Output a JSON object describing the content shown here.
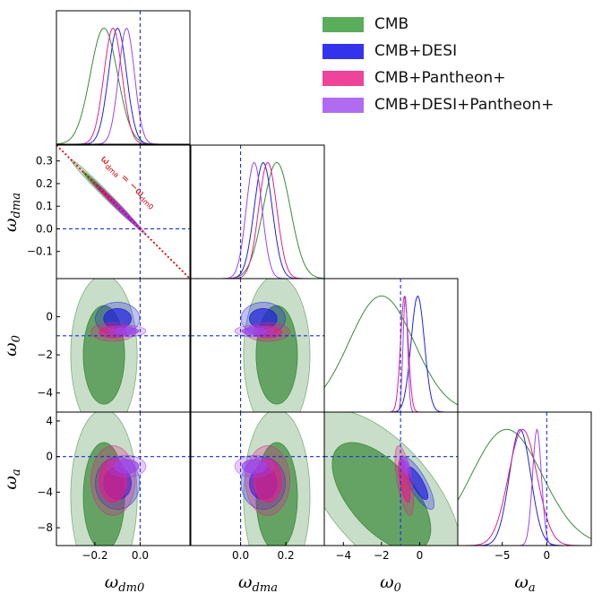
{
  "legend": [
    {
      "label": "CMB",
      "color": "#5aad5a"
    },
    {
      "label": "CMB+DESI",
      "color": "#3333ee"
    },
    {
      "label": "CMB+Pantheon+",
      "color": "#ee4499"
    },
    {
      "label": "CMB+DESI+Pantheon+",
      "color": "#b06cf0"
    }
  ],
  "chart_data": {
    "type": "triangle",
    "parameters": [
      "ω_dm0",
      "ω_dma",
      "ω_0",
      "ω_a"
    ],
    "axis_labels": {
      "dm0": "ωdm0",
      "dma": "ωdma",
      "w0": "ω0",
      "wa": "ωa"
    },
    "ranges": {
      "dm0": [
        -0.37,
        0.22
      ],
      "dma": [
        -0.22,
        0.37
      ],
      "w0": [
        -5.0,
        2.0
      ],
      "wa": [
        -10.0,
        5.0
      ]
    },
    "ticks": {
      "dm0": [
        -0.2,
        0.0
      ],
      "dma_x": [
        0.0,
        0.2
      ],
      "dma_y": [
        -0.1,
        0.0,
        0.1,
        0.2,
        0.3
      ],
      "w0_x": [
        -4,
        -2,
        0
      ],
      "w0_y": [
        -4,
        -2,
        0
      ],
      "wa_x": [
        -5,
        0
      ],
      "wa_y": [
        -8,
        -4,
        0,
        4
      ]
    },
    "reference_lines": {
      "dm0": 0.0,
      "dma": 0.0,
      "w0": -1.0,
      "wa": 0.0,
      "line_color": "#1a2fe0"
    },
    "relation_annotation": {
      "text_main": "ω",
      "sub1": "dma",
      "mid": " = −ω",
      "sub2": "dm0",
      "color": "#dd0000"
    },
    "series": [
      {
        "name": "CMB",
        "color": "#3a8a3a",
        "mean": {
          "dm0": -0.16,
          "dma": 0.16,
          "w0": -2.0,
          "wa": -4.5
        },
        "sd": {
          "dm0": 0.06,
          "dma": 0.06,
          "w0": 1.7,
          "wa": 4.0
        }
      },
      {
        "name": "CMB+DESI",
        "color": "#2222dd",
        "mean": {
          "dm0": -0.1,
          "dma": 0.1,
          "w0": -0.1,
          "wa": -3.0
        },
        "sd": {
          "dm0": 0.04,
          "dma": 0.04,
          "w0": 0.35,
          "wa": 1.2
        }
      },
      {
        "name": "CMB+Pantheon+",
        "color": "#dd2288",
        "mean": {
          "dm0": -0.12,
          "dma": 0.12,
          "w0": -0.8,
          "wa": -2.7
        },
        "sd": {
          "dm0": 0.04,
          "dma": 0.04,
          "w0": 0.2,
          "wa": 1.6
        }
      },
      {
        "name": "CMB+DESI+Pantheon+",
        "color": "#9a44ee",
        "mean": {
          "dm0": -0.06,
          "dma": 0.06,
          "w0": -0.75,
          "wa": -1.1
        },
        "sd": {
          "dm0": 0.035,
          "dma": 0.035,
          "w0": 0.12,
          "wa": 0.5
        }
      }
    ]
  }
}
